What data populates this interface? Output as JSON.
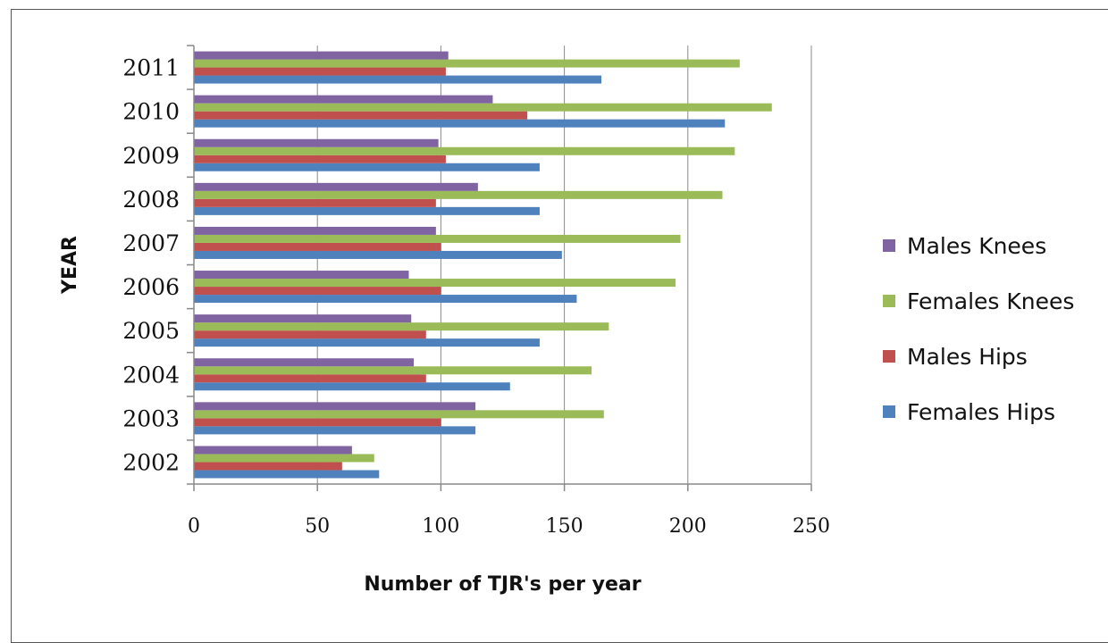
{
  "chart_data": {
    "type": "bar",
    "orientation": "horizontal",
    "xlabel": "Number of TJR's per year",
    "ylabel": "YEAR",
    "xlim": [
      0,
      250
    ],
    "xticks": [
      0,
      50,
      100,
      150,
      200,
      250
    ],
    "grid": "vertical",
    "legend_position": "right",
    "categories": [
      "2002",
      "2003",
      "2004",
      "2005",
      "2006",
      "2007",
      "2008",
      "2009",
      "2010",
      "2011"
    ],
    "series": [
      {
        "name": "Females Hips",
        "color": "#4f81bd",
        "values": [
          75,
          114,
          128,
          140,
          155,
          149,
          140,
          140,
          215,
          165
        ]
      },
      {
        "name": "Males Hips",
        "color": "#c0504d",
        "values": [
          60,
          100,
          94,
          94,
          100,
          100,
          98,
          102,
          135,
          102
        ]
      },
      {
        "name": "Females Knees",
        "color": "#9bbb59",
        "values": [
          73,
          166,
          161,
          168,
          195,
          197,
          214,
          219,
          234,
          221
        ]
      },
      {
        "name": "Males Knees",
        "color": "#8064a2",
        "values": [
          64,
          114,
          89,
          88,
          87,
          98,
          115,
          99,
          121,
          103
        ]
      }
    ],
    "legend_order": [
      "Males Knees",
      "Females Knees",
      "Males Hips",
      "Females Hips"
    ]
  }
}
